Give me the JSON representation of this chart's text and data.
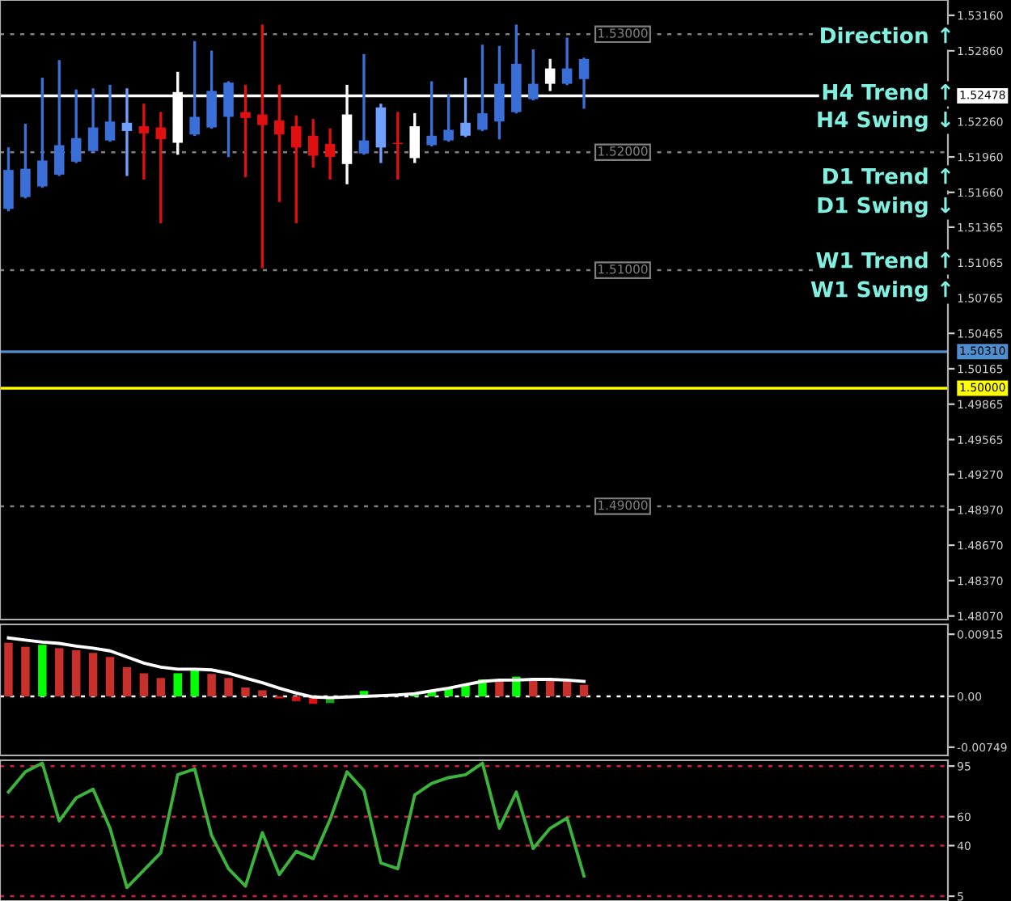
{
  "chart_data": [
    {
      "type": "candlestick",
      "categories": [
        null,
        null,
        null,
        null,
        null,
        null,
        null,
        null,
        null,
        null,
        null,
        null,
        null,
        null,
        null,
        null,
        null,
        null,
        null,
        null,
        null,
        null,
        null,
        null,
        null,
        null,
        null,
        null,
        null,
        null,
        null,
        null,
        null,
        null,
        null,
        null,
        null,
        null,
        null,
        null,
        null,
        null,
        null,
        null,
        null,
        null,
        null,
        null,
        null,
        null,
        null,
        null,
        null,
        null,
        null,
        null
      ],
      "ohlc": [
        [
          1.5152,
          1.5203,
          1.5151,
          1.5185
        ],
        [
          1.5162,
          1.5223,
          1.5162,
          1.5186
        ],
        [
          1.5171,
          1.5262,
          1.5171,
          1.5193
        ],
        [
          1.5181,
          1.5277,
          1.5181,
          1.5206
        ],
        [
          1.5192,
          1.5252,
          1.5192,
          1.5212
        ],
        [
          1.5201,
          1.5253,
          1.5201,
          1.5221
        ],
        [
          1.521,
          1.5256,
          1.521,
          1.5226
        ],
        [
          1.5218,
          1.5253,
          1.5181,
          1.5225
        ],
        [
          1.5222,
          1.524,
          1.5178,
          1.5216
        ],
        [
          1.5221,
          1.5233,
          1.5141,
          1.5211
        ],
        [
          1.5208,
          1.5267,
          1.5199,
          1.5251
        ],
        [
          1.5215,
          1.5293,
          1.5215,
          1.523
        ],
        [
          1.5221,
          1.5285,
          1.5221,
          1.5252
        ],
        [
          1.523,
          1.5259,
          1.5197,
          1.5259
        ],
        [
          1.5234,
          1.5256,
          1.518,
          1.5229
        ],
        [
          1.5232,
          1.5307,
          1.5103,
          1.5223
        ],
        [
          1.5227,
          1.5256,
          1.5159,
          1.5215
        ],
        [
          1.5222,
          1.523,
          1.5141,
          1.5204
        ],
        [
          1.5214,
          1.5227,
          1.5188,
          1.5197
        ],
        [
          1.5207,
          1.5219,
          1.5178,
          1.5196
        ],
        [
          1.519,
          1.5256,
          1.5174,
          1.5232
        ],
        [
          1.5199,
          1.5282,
          1.5199,
          1.521
        ],
        [
          1.5204,
          1.524,
          1.5192,
          1.5238
        ],
        [
          1.5208,
          1.5233,
          1.5178,
          1.5207
        ],
        [
          1.5195,
          1.5232,
          1.5192,
          1.5222
        ],
        [
          1.5206,
          1.5259,
          1.5206,
          1.5214
        ],
        [
          1.521,
          1.5248,
          1.521,
          1.5219
        ],
        [
          1.5214,
          1.5262,
          1.5214,
          1.5225
        ],
        [
          1.5219,
          1.529,
          1.5219,
          1.5233
        ],
        [
          1.5226,
          1.5289,
          1.5212,
          1.5258
        ],
        [
          1.5234,
          1.5307,
          1.5234,
          1.5275
        ],
        [
          1.5245,
          1.5286,
          1.5245,
          1.5258
        ],
        [
          1.5258,
          1.5278,
          1.5253,
          1.5271
        ],
        [
          1.5258,
          1.5296,
          1.5258,
          1.5271
        ],
        [
          1.5262,
          1.5279,
          1.5238,
          1.5279
        ],
        null,
        null,
        null,
        null,
        null,
        null,
        null,
        null,
        null,
        null,
        null,
        null,
        null,
        null,
        null,
        null,
        null,
        null,
        null,
        null,
        null
      ],
      "colors": [
        "#3a6fd8",
        "#3a6fd8",
        "#3a6fd8",
        "#3a6fd8",
        "#3a6fd8",
        "#3a6fd8",
        "#3a6fd8",
        "#6fa0ff",
        "#e01010",
        "#e01010",
        "#ffffff",
        "#3a6fd8",
        "#3a6fd8",
        "#3a6fd8",
        "#e01010",
        "#e01010",
        "#e01010",
        "#e01010",
        "#e01010",
        "#e01010",
        "#ffffff",
        "#3a6fd8",
        "#6fa0ff",
        "#e01010",
        "#ffffff",
        "#3a6fd8",
        "#3a6fd8",
        "#6fa0ff",
        "#3a6fd8",
        "#3a6fd8",
        "#3a6fd8",
        "#3a6fd8",
        "#ffffff",
        "#3a6fd8",
        "#3a6fd8",
        null,
        null,
        null,
        null,
        null,
        null,
        null,
        null,
        null,
        null,
        null,
        null,
        null,
        null,
        null,
        null,
        null,
        null,
        null,
        null,
        null
      ],
      "ylim": [
        1.4804,
        1.5329
      ],
      "yticks": [
        {
          "value": 1.5316,
          "label": "1.53160"
        },
        {
          "value": 1.5286,
          "label": "1.52860"
        },
        {
          "value": 1.5256,
          "label": null
        },
        {
          "value": 1.5226,
          "label": "1.52260"
        },
        {
          "value": 1.5196,
          "label": "1.51960"
        },
        {
          "value": 1.5166,
          "label": "1.51660"
        },
        {
          "value": 1.51365,
          "label": "1.51365"
        },
        {
          "value": 1.51065,
          "label": "1.51065"
        },
        {
          "value": 1.50765,
          "label": "1.50765"
        },
        {
          "value": 1.50465,
          "label": "1.50465"
        },
        {
          "value": 1.50165,
          "label": "1.50165"
        },
        {
          "value": 1.49865,
          "label": "1.49865"
        },
        {
          "value": 1.49565,
          "label": "1.49565"
        },
        {
          "value": 1.4927,
          "label": "1.49270"
        },
        {
          "value": 1.4897,
          "label": "1.48970"
        },
        {
          "value": 1.4867,
          "label": "1.48670"
        },
        {
          "value": 1.4837,
          "label": "1.48370"
        },
        {
          "value": 1.4807,
          "label": "1.48070"
        }
      ],
      "ref_lines": [
        {
          "axis": "y",
          "value": 1.53,
          "label": "1.53000",
          "color": "#808080",
          "line_style": "dotted"
        },
        {
          "axis": "y",
          "value": 1.52,
          "label": "1.52000",
          "color": "#808080",
          "line_style": "dotted"
        },
        {
          "axis": "y",
          "value": 1.51,
          "label": "1.51000",
          "color": "#808080",
          "line_style": "dotted"
        },
        {
          "axis": "y",
          "value": 1.5,
          "label": "1.50000",
          "color": "#ffff00",
          "line_style": "solid"
        },
        {
          "axis": "y",
          "value": 1.49,
          "label": "1.49000",
          "color": "#808080",
          "line_style": "dotted"
        },
        {
          "axis": "y",
          "value": 1.52478,
          "label": "1.52478",
          "color": "#ffffff",
          "line_style": "solid"
        },
        {
          "axis": "y",
          "value": 1.5031,
          "label": "1.50310",
          "color": "#4f8fd0",
          "line_style": "solid"
        }
      ],
      "annotations": [
        "Direction ↑",
        "H4 Trend ↑",
        "H4 Swing ↓",
        "D1 Trend ↑",
        "D1 Swing ↓",
        "W1 Trend ↑",
        "W1 Swing ↑"
      ],
      "tick_labels": "y",
      "grid": false,
      "legend": false
    },
    {
      "type": "bar",
      "categories": [
        null,
        null,
        null,
        null,
        null,
        null,
        null,
        null,
        null,
        null,
        null,
        null,
        null,
        null,
        null,
        null,
        null,
        null,
        null,
        null,
        null,
        null,
        null,
        null,
        null,
        null,
        null,
        null,
        null,
        null,
        null,
        null,
        null,
        null,
        null,
        null,
        null,
        null,
        null,
        null,
        null,
        null,
        null,
        null,
        null,
        null,
        null,
        null,
        null,
        null,
        null,
        null,
        null,
        null,
        null,
        null
      ],
      "series": [
        {
          "type": "bar",
          "values": [
            0.0079,
            0.0073,
            0.0076,
            0.0071,
            0.0068,
            0.0064,
            0.0058,
            0.0043,
            0.0034,
            0.0027,
            0.0034,
            0.0039,
            0.0033,
            0.0027,
            0.0013,
            0.0009,
            -0.0003,
            -0.0007,
            -0.0011,
            -0.001,
            0.0001,
            0.0008,
            0.0002,
            null,
            0.0003,
            0.0008,
            0.0012,
            0.0017,
            0.0025,
            0.0025,
            0.0029,
            0.0024,
            0.0024,
            0.0023,
            0.0017,
            null,
            null,
            null,
            null,
            null,
            null,
            null,
            null,
            null,
            null,
            null,
            null,
            null,
            null,
            null,
            null,
            null,
            null,
            null,
            null,
            null
          ],
          "colors": [
            "#c8302c",
            "#c8302c",
            "#00ff00",
            "#c8302c",
            "#c8302c",
            "#c8302c",
            "#c8302c",
            "#c8302c",
            "#c8302c",
            "#c8302c",
            "#00ff00",
            "#00ff00",
            "#c8302c",
            "#c8302c",
            "#c8302c",
            "#c8302c",
            "#e01010",
            "#e01010",
            "#e01010",
            "#18a018",
            "#c8302c",
            "#00ff00",
            "#c8302c",
            "#c8302c",
            "#00ff00",
            "#00ff00",
            "#00ff00",
            "#00ff00",
            "#00ff00",
            "#c8302c",
            "#00ff00",
            "#c8302c",
            "#c8302c",
            "#c8302c",
            "#c8302c",
            null,
            null,
            null,
            null,
            null,
            null,
            null,
            null,
            null,
            null,
            null,
            null,
            null,
            null,
            null,
            null,
            null,
            null,
            null,
            null,
            null
          ]
        },
        {
          "type": "line",
          "color": "#ffffff",
          "values": [
            0.0086,
            0.0083,
            0.008,
            0.0078,
            0.0074,
            0.0071,
            0.0067,
            0.0058,
            0.0049,
            0.0043,
            0.004,
            0.004,
            0.0039,
            0.0034,
            0.0027,
            0.002,
            0.0012,
            0.0005,
            -0.0001,
            -0.0002,
            -0.0001,
            0.0,
            0.0001,
            0.0002,
            0.0004,
            0.0008,
            0.0012,
            0.0017,
            0.0022,
            0.0024,
            0.0024,
            0.0025,
            0.0025,
            0.0024,
            0.0022,
            null,
            null,
            null,
            null,
            null,
            null,
            null,
            null,
            null,
            null,
            null,
            null,
            null,
            null,
            null,
            null,
            null,
            null,
            null,
            null,
            null
          ]
        }
      ],
      "ylim": [
        -0.0087,
        0.0106
      ],
      "yticks": [
        {
          "value": 0.00915,
          "label": "0.00915"
        },
        {
          "value": 0,
          "label": "0.00"
        },
        {
          "value": -0.00749,
          "label": "-0.00749"
        }
      ],
      "ref_lines": [
        {
          "axis": "y",
          "value": 0,
          "color": "#ffffff",
          "line_style": "dotted"
        }
      ],
      "tick_labels": "y",
      "grid": false,
      "legend": false
    },
    {
      "type": "line",
      "categories": [
        null,
        null,
        null,
        null,
        null,
        null,
        null,
        null,
        null,
        null,
        null,
        null,
        null,
        null,
        null,
        null,
        null,
        null,
        null,
        null,
        null,
        null,
        null,
        null,
        null,
        null,
        null,
        null,
        null,
        null,
        null,
        null,
        null,
        null,
        null,
        null,
        null,
        null,
        null,
        null,
        null,
        null,
        null,
        null,
        null,
        null,
        null,
        null,
        null,
        null,
        null,
        null,
        null,
        null,
        null,
        null
      ],
      "series": [
        {
          "color": "#3cb43c",
          "values": [
            77,
            91,
            97,
            57,
            73,
            79,
            52,
            11,
            23,
            35,
            89,
            93,
            47,
            24,
            12,
            49,
            20,
            36,
            31,
            58,
            91,
            78,
            28,
            24,
            75,
            83,
            87,
            89,
            97,
            52,
            77,
            38,
            52,
            59,
            19,
            null,
            null,
            null,
            null,
            null,
            null,
            null,
            null,
            null,
            null,
            null,
            null,
            null,
            null,
            null,
            null,
            null,
            null,
            null,
            null,
            null
          ]
        }
      ],
      "ylim": [
        1.7,
        99
      ],
      "yticks": [
        95,
        60,
        40,
        5
      ],
      "ref_lines": [
        {
          "axis": "y",
          "value": 95,
          "color": "#d02040",
          "line_style": "dotted"
        },
        {
          "axis": "y",
          "value": 60,
          "color": "#d02040",
          "line_style": "dotted"
        },
        {
          "axis": "y",
          "value": 40,
          "color": "#d02040",
          "line_style": "dotted"
        },
        {
          "axis": "y",
          "value": 5,
          "color": "#d02040",
          "line_style": "dotted"
        }
      ],
      "tick_labels": "y",
      "grid": false,
      "legend": false,
      "marker": "none"
    }
  ]
}
